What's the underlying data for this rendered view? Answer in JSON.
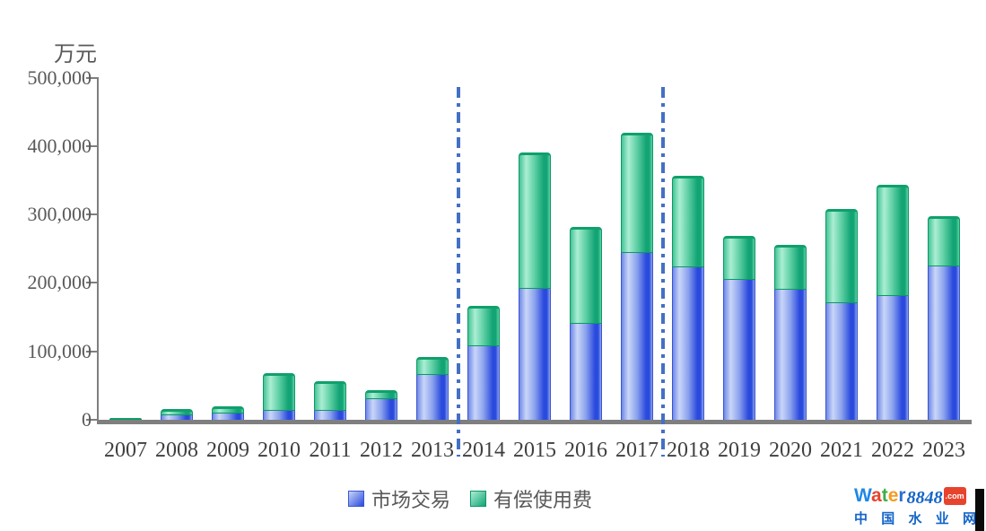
{
  "chart_data": {
    "type": "bar",
    "stacked": true,
    "title": "",
    "xlabel": "",
    "ylabel": "万元",
    "ylim": [
      0,
      500000
    ],
    "ytick_interval": 100000,
    "yticks": [
      "0",
      "100,000",
      "200,000",
      "300,000",
      "400,000",
      "500,000"
    ],
    "grid": false,
    "legend_position": "bottom",
    "categories": [
      "2007",
      "2008",
      "2009",
      "2010",
      "2011",
      "2012",
      "2013",
      "2014",
      "2015",
      "2016",
      "2017",
      "2018",
      "2019",
      "2020",
      "2021",
      "2022",
      "2023"
    ],
    "series": [
      {
        "name": "市场交易",
        "values": [
          1000,
          7000,
          9000,
          13000,
          13000,
          30000,
          66000,
          107000,
          191000,
          140000,
          244000,
          223000,
          204000,
          190000,
          171000,
          181000,
          224000
        ],
        "grad_stops": [
          "#7089E8",
          "#C9D6F8",
          "#8BA2EE",
          "#2A4ADE",
          "#8EA4EE"
        ],
        "border_color": "#3A56D0",
        "cap_color": "#2747C8"
      },
      {
        "name": "有偿使用费",
        "values": [
          2000,
          9000,
          11000,
          55000,
          44000,
          13000,
          26000,
          60000,
          199000,
          142000,
          175000,
          134000,
          65000,
          66000,
          137000,
          163000,
          73000
        ],
        "grad_stops": [
          "#46C497",
          "#ABEED4",
          "#5ECFA4",
          "#12A474",
          "#62D2A8"
        ],
        "border_color": "#0D9865",
        "cap_color": "#0FA06C"
      }
    ],
    "dividers": [
      {
        "between": [
          "2013",
          "2014"
        ]
      },
      {
        "between": [
          "2017",
          "2018"
        ]
      }
    ],
    "divider_color": "#4470C4",
    "axis_color": "#7f7f7f"
  },
  "watermark": {
    "brand_letters": [
      {
        "ch": "W",
        "color": "#1E88E5"
      },
      {
        "ch": "a",
        "color": "#E8432D"
      },
      {
        "ch": "t",
        "color": "#3FAE49"
      },
      {
        "ch": "e",
        "color": "#F59B20"
      },
      {
        "ch": "r",
        "color": "#2A6FD6"
      }
    ],
    "number": "8848",
    "tld": ".com",
    "cn_text": "中国水业网"
  }
}
